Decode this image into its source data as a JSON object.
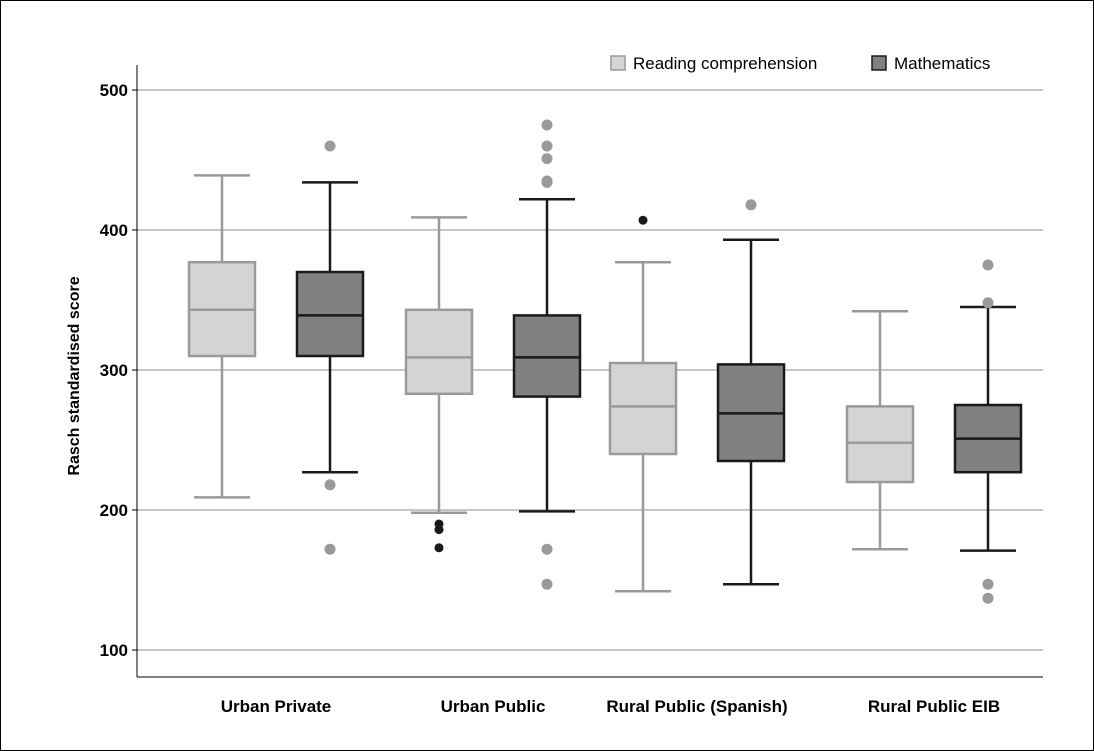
{
  "chart_data": {
    "type": "boxplot",
    "ylabel": "Rasch standardised score",
    "ylim": [
      80,
      520
    ],
    "yticks": [
      100,
      200,
      300,
      400,
      500
    ],
    "grid": "horizontal",
    "legend_placement": "top-right",
    "categories": [
      "Urban Private",
      "Urban Public",
      "Rural Public (Spanish)",
      "Rural Public EIB"
    ],
    "series": [
      {
        "name": "Reading comprehension",
        "fill": "#d3d4d6",
        "stroke": "#999a9c",
        "boxes": [
          {
            "min": 209,
            "q1": 310,
            "median": 343,
            "q3": 377,
            "max": 439,
            "outliers": [],
            "outliers_dark": []
          },
          {
            "min": 198,
            "q1": 283,
            "median": 309,
            "q3": 343,
            "max": 409,
            "outliers": [],
            "outliers_dark": [
              190,
              186,
              173
            ]
          },
          {
            "min": 142,
            "q1": 240,
            "median": 274,
            "q3": 305,
            "max": 377,
            "outliers": [],
            "outliers_dark": [
              407
            ]
          },
          {
            "min": 172,
            "q1": 220,
            "median": 248,
            "q3": 274,
            "max": 342,
            "outliers": [],
            "outliers_dark": []
          }
        ]
      },
      {
        "name": "Mathematics",
        "fill": "#7f8082",
        "stroke": "#1a1a1a",
        "boxes": [
          {
            "min": 227,
            "q1": 310,
            "median": 339,
            "q3": 370,
            "max": 434,
            "outliers": [
              460,
              218,
              172
            ],
            "outliers_dark": []
          },
          {
            "min": 199,
            "q1": 281,
            "median": 309,
            "q3": 339,
            "max": 422,
            "outliers": [
              475,
              460,
              451,
              435,
              434,
              172,
              147
            ],
            "outliers_dark": []
          },
          {
            "min": 147,
            "q1": 235,
            "median": 269,
            "q3": 304,
            "max": 393,
            "outliers": [
              418
            ],
            "outliers_dark": []
          },
          {
            "min": 171,
            "q1": 227,
            "median": 251,
            "q3": 275,
            "max": 345,
            "outliers": [
              375,
              348,
              147,
              137
            ],
            "outliers_dark": []
          }
        ]
      }
    ],
    "outlier_color": "#999a9c",
    "outlier_dark_color": "#1a1a1a"
  }
}
